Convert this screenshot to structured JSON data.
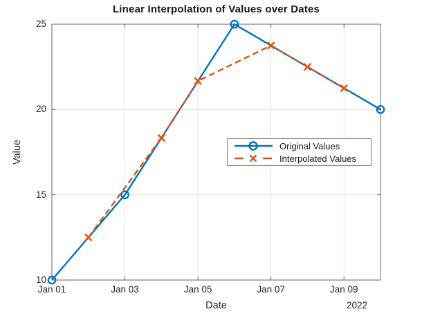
{
  "figure": {
    "background": "#ffffff"
  },
  "chart_data": {
    "type": "line",
    "title": "Linear Interpolation of Values over Dates",
    "xlabel": "Date",
    "ylabel": "Value",
    "grid": true,
    "legend_position": "middle-right",
    "x_axis": {
      "range_days": [
        0,
        9
      ],
      "tick_positions": [
        0,
        2,
        4,
        6,
        8
      ],
      "tick_labels": [
        "Jan 01",
        "Jan 03",
        "Jan 05",
        "Jan 07",
        "Jan 09"
      ],
      "secondary_label": "2022"
    },
    "y_axis": {
      "range": [
        10,
        25
      ],
      "ticks": [
        10,
        15,
        20,
        25
      ]
    },
    "series": [
      {
        "name": "Original Values",
        "color": "#0072BD",
        "line_style": "solid",
        "marker": "circle",
        "points": [
          {
            "date": "Jan 01",
            "x": 0,
            "y": 10
          },
          {
            "date": "Jan 03",
            "x": 2,
            "y": 15
          },
          {
            "date": "Jan 06",
            "x": 5,
            "y": 25
          },
          {
            "date": "Jan 10",
            "x": 9,
            "y": 20
          }
        ]
      },
      {
        "name": "Interpolated Values",
        "color": "#D95319",
        "line_style": "dashed",
        "marker": "x",
        "points": [
          {
            "date": "Jan 02",
            "x": 1,
            "y": 12.5
          },
          {
            "date": "Jan 04",
            "x": 3,
            "y": 18.33
          },
          {
            "date": "Jan 05",
            "x": 4,
            "y": 21.67
          },
          {
            "date": "Jan 07",
            "x": 6,
            "y": 23.75
          },
          {
            "date": "Jan 08",
            "x": 7,
            "y": 22.5
          },
          {
            "date": "Jan 09",
            "x": 8,
            "y": 21.25
          }
        ]
      }
    ],
    "style": {
      "grid_color": "#e5e5e5",
      "axis_box_color": "#636363",
      "tick_label_color": "#262626"
    }
  }
}
